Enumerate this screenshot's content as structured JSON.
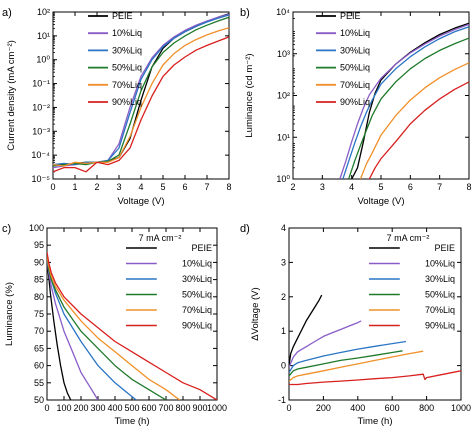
{
  "series_colors": {
    "PEIE": "#000000",
    "10%Liq": "#8a5cc7",
    "30%Liq": "#2a75c4",
    "50%Liq": "#1f7a2b",
    "70%Liq": "#f0902a",
    "90%Liq": "#d8201f"
  },
  "chart_data": [
    {
      "panel": "a)",
      "type": "line",
      "xlabel": "Voltage (V)",
      "ylabel": "Current density (mA cm⁻²)",
      "xlim": [
        0,
        8
      ],
      "ylim": [
        1e-05,
        100
      ],
      "yscale": "log",
      "xticks": [
        "0",
        "1",
        "2",
        "3",
        "4",
        "5",
        "6",
        "7",
        "8"
      ],
      "yticks": [
        "10⁻⁵",
        "10⁻⁴",
        "10⁻³",
        "10⁻²",
        "10⁻¹",
        "10⁰",
        "10¹",
        "10²"
      ],
      "legend_position": "top-left",
      "series": [
        {
          "name": "PEIE",
          "x": [
            0.0,
            0.5,
            1.0,
            1.5,
            2.0,
            2.5,
            3.0,
            3.5,
            4.0,
            4.5,
            5.0,
            5.5,
            6.0,
            6.5,
            7.0,
            7.5,
            8.0
          ],
          "y": [
            4e-05,
            4e-05,
            4.5e-05,
            5e-05,
            5e-05,
            5.5e-05,
            8e-05,
            0.0005,
            0.02,
            0.5,
            3,
            8,
            15,
            25,
            40,
            60,
            85
          ]
        },
        {
          "name": "10%Liq",
          "x": [
            0.0,
            0.5,
            1.0,
            1.5,
            2.0,
            2.5,
            3.0,
            3.5,
            4.0,
            4.5,
            5.0,
            5.5,
            6.0,
            6.5,
            7.0,
            7.5,
            8.0
          ],
          "y": [
            3e-05,
            3.5e-05,
            4e-05,
            4.5e-05,
            5e-05,
            6e-05,
            0.0003,
            0.01,
            0.2,
            1.2,
            4,
            9,
            17,
            28,
            42,
            60,
            80
          ]
        },
        {
          "name": "30%Liq",
          "x": [
            0.0,
            0.5,
            1.0,
            1.5,
            2.0,
            2.5,
            3.0,
            3.5,
            4.0,
            4.5,
            5.0,
            5.5,
            6.0,
            6.5,
            7.0,
            7.5,
            8.0
          ],
          "y": [
            4e-05,
            4.5e-05,
            4e-05,
            5e-05,
            5e-05,
            6e-05,
            0.0002,
            0.006,
            0.15,
            1,
            3.5,
            8,
            15,
            25,
            38,
            55,
            75
          ]
        },
        {
          "name": "50%Liq",
          "x": [
            0.0,
            0.5,
            1.0,
            1.5,
            2.0,
            2.5,
            3.0,
            3.5,
            4.0,
            4.5,
            5.0,
            5.5,
            6.0,
            6.5,
            7.0,
            7.5,
            8.0
          ],
          "y": [
            3.5e-05,
            4e-05,
            4.5e-05,
            4e-05,
            5e-05,
            5.5e-05,
            0.0001,
            0.002,
            0.05,
            0.5,
            2,
            5,
            10,
            18,
            28,
            42,
            60
          ]
        },
        {
          "name": "70%Liq",
          "x": [
            0.0,
            0.5,
            1.0,
            1.5,
            2.0,
            2.5,
            3.0,
            3.5,
            4.0,
            4.5,
            5.0,
            5.5,
            6.0,
            6.5,
            7.0,
            7.5,
            8.0
          ],
          "y": [
            4e-05,
            3.5e-05,
            5e-05,
            4.5e-05,
            5e-05,
            5e-05,
            8e-05,
            0.0006,
            0.01,
            0.1,
            0.6,
            1.8,
            4,
            7,
            11,
            16,
            22
          ]
        },
        {
          "name": "90%Liq",
          "x": [
            0.0,
            0.5,
            1.0,
            1.5,
            2.0,
            2.5,
            3.0,
            3.5,
            4.0,
            4.5,
            5.0,
            5.5,
            6.0,
            6.5,
            7.0,
            7.5,
            8.0
          ],
          "y": [
            2e-05,
            3e-05,
            3e-05,
            2e-05,
            5e-05,
            4e-05,
            6e-05,
            0.0002,
            0.003,
            0.03,
            0.2,
            0.6,
            1.3,
            2.5,
            4,
            6,
            9
          ]
        }
      ]
    },
    {
      "panel": "b)",
      "type": "line",
      "xlabel": "Voltage (V)",
      "ylabel": "Luminance (cd m⁻²)",
      "xlim": [
        2,
        8
      ],
      "ylim": [
        1,
        30000
      ],
      "yscale": "log",
      "xticks": [
        "2",
        "3",
        "4",
        "5",
        "6",
        "7",
        "8"
      ],
      "yticks": [
        "10⁰",
        "10¹",
        "10²",
        "10³",
        "10⁴"
      ],
      "legend_position": "top-left",
      "series": [
        {
          "name": "PEIE",
          "x": [
            4.0,
            4.2,
            4.4,
            4.6,
            4.8,
            5.0,
            5.5,
            6.0,
            6.5,
            7.0,
            7.5,
            8.0
          ],
          "y": [
            1,
            2,
            10,
            60,
            200,
            450,
            1200,
            2500,
            4500,
            7500,
            11000,
            15000
          ]
        },
        {
          "name": "10%Liq",
          "x": [
            3.6,
            3.8,
            4.0,
            4.2,
            4.4,
            4.6,
            5.0,
            5.5,
            6.0,
            6.5,
            7.0,
            7.5,
            8.0
          ],
          "y": [
            1,
            3,
            10,
            30,
            80,
            180,
            500,
            1200,
            2400,
            4200,
            6800,
            10000,
            14000
          ]
        },
        {
          "name": "30%Liq",
          "x": [
            3.7,
            3.9,
            4.1,
            4.3,
            4.5,
            4.7,
            5.0,
            5.5,
            6.0,
            6.5,
            7.0,
            7.5,
            8.0
          ],
          "y": [
            1,
            3,
            9,
            25,
            60,
            130,
            350,
            900,
            1900,
            3500,
            5800,
            8800,
            12000
          ]
        },
        {
          "name": "50%Liq",
          "x": [
            3.9,
            4.1,
            4.3,
            4.5,
            4.7,
            5.0,
            5.5,
            6.0,
            6.5,
            7.0,
            7.5,
            8.0
          ],
          "y": [
            1,
            3,
            8,
            20,
            50,
            140,
            400,
            900,
            1700,
            2800,
            4200,
            6000
          ]
        },
        {
          "name": "70%Liq",
          "x": [
            4.3,
            4.5,
            4.7,
            5.0,
            5.5,
            6.0,
            6.5,
            7.0,
            7.5,
            8.0
          ],
          "y": [
            1,
            2.5,
            5,
            15,
            50,
            130,
            280,
            520,
            850,
            1300
          ]
        },
        {
          "name": "90%Liq",
          "x": [
            4.6,
            4.8,
            5.0,
            5.5,
            6.0,
            6.5,
            7.0,
            7.5,
            8.0
          ],
          "y": [
            1,
            2,
            3.5,
            10,
            30,
            70,
            140,
            250,
            400
          ]
        }
      ]
    },
    {
      "panel": "c)",
      "type": "line",
      "title": "7 mA cm⁻²",
      "xlabel": "Time (h)",
      "ylabel": "Luminance (%)",
      "xlim": [
        0,
        1000
      ],
      "ylim": [
        50,
        100
      ],
      "xticks": [
        "0",
        "100",
        "200",
        "300",
        "400",
        "500",
        "600",
        "700",
        "800",
        "900",
        "1000"
      ],
      "yticks": [
        "50",
        "55",
        "60",
        "65",
        "70",
        "75",
        "80",
        "85",
        "90",
        "95",
        "100"
      ],
      "legend_position": "top-right",
      "series": [
        {
          "name": "PEIE",
          "x": [
            0,
            5,
            10,
            20,
            40,
            60,
            80,
            100,
            120,
            140
          ],
          "y": [
            91,
            88,
            86,
            81,
            73,
            66,
            60,
            55,
            52,
            50
          ]
        },
        {
          "name": "10%Liq",
          "x": [
            0,
            10,
            25,
            50,
            100,
            150,
            200,
            250,
            300
          ],
          "y": [
            91,
            87,
            83,
            78,
            70,
            64,
            58,
            54,
            50
          ]
        },
        {
          "name": "30%Liq",
          "x": [
            0,
            10,
            25,
            50,
            100,
            200,
            300,
            400,
            500,
            525
          ],
          "y": [
            92,
            88,
            85,
            81,
            75,
            67,
            60,
            55,
            51,
            50
          ]
        },
        {
          "name": "50%Liq",
          "x": [
            0,
            10,
            25,
            50,
            100,
            200,
            300,
            400,
            500,
            600,
            700
          ],
          "y": [
            92,
            88,
            85,
            82,
            77,
            70,
            65,
            60,
            56,
            53,
            50
          ]
        },
        {
          "name": "70%Liq",
          "x": [
            0,
            10,
            25,
            50,
            100,
            200,
            300,
            400,
            500,
            600,
            700,
            780
          ],
          "y": [
            92,
            89,
            86,
            83,
            79,
            73,
            68,
            64,
            60,
            56,
            53,
            50
          ]
        },
        {
          "name": "90%Liq",
          "x": [
            0,
            10,
            25,
            50,
            100,
            200,
            300,
            400,
            500,
            600,
            700,
            800,
            900,
            1000
          ],
          "y": [
            93,
            90,
            87,
            84,
            80,
            75,
            71,
            67,
            64,
            61,
            58,
            55,
            53,
            50
          ]
        }
      ]
    },
    {
      "panel": "d)",
      "type": "line",
      "title": "7 mA cm⁻²",
      "xlabel": "Time (h)",
      "ylabel": "ΔVoltage (V)",
      "xlim": [
        0,
        1000
      ],
      "ylim": [
        -1,
        4
      ],
      "xticks": [
        "0",
        "200",
        "400",
        "600",
        "800",
        "1000"
      ],
      "yticks": [
        "-1",
        "0",
        "1",
        "2",
        "3",
        "4"
      ],
      "legend_position": "top-right",
      "series": [
        {
          "name": "PEIE",
          "x": [
            0,
            10,
            25,
            50,
            75,
            100,
            125,
            150,
            175,
            190
          ],
          "y": [
            0,
            0.35,
            0.55,
            0.8,
            1.05,
            1.3,
            1.5,
            1.7,
            1.9,
            2.05
          ]
        },
        {
          "name": "10%Liq",
          "x": [
            0,
            25,
            50,
            100,
            150,
            200,
            250,
            300,
            350,
            400,
            420
          ],
          "y": [
            -0.05,
            0.25,
            0.4,
            0.55,
            0.7,
            0.85,
            0.95,
            1.05,
            1.15,
            1.25,
            1.3
          ]
        },
        {
          "name": "30%Liq",
          "x": [
            0,
            25,
            50,
            100,
            200,
            300,
            400,
            500,
            600,
            680
          ],
          "y": [
            -0.2,
            0,
            0.08,
            0.15,
            0.28,
            0.38,
            0.48,
            0.56,
            0.64,
            0.7
          ]
        },
        {
          "name": "50%Liq",
          "x": [
            0,
            25,
            50,
            100,
            200,
            300,
            400,
            500,
            600,
            660
          ],
          "y": [
            -0.3,
            -0.15,
            -0.1,
            -0.05,
            0.05,
            0.15,
            0.22,
            0.3,
            0.38,
            0.43
          ]
        },
        {
          "name": "70%Liq",
          "x": [
            0,
            25,
            50,
            100,
            200,
            300,
            400,
            500,
            600,
            700,
            780
          ],
          "y": [
            -0.45,
            -0.35,
            -0.3,
            -0.25,
            -0.15,
            -0.05,
            0.05,
            0.15,
            0.25,
            0.35,
            0.42
          ]
        },
        {
          "name": "90%Liq",
          "x": [
            0,
            50,
            100,
            200,
            300,
            400,
            500,
            600,
            700,
            780,
            790,
            800,
            900,
            1000
          ],
          "y": [
            -0.55,
            -0.55,
            -0.52,
            -0.48,
            -0.45,
            -0.42,
            -0.38,
            -0.35,
            -0.3,
            -0.25,
            -0.4,
            -0.35,
            -0.25,
            -0.15
          ]
        }
      ]
    }
  ]
}
